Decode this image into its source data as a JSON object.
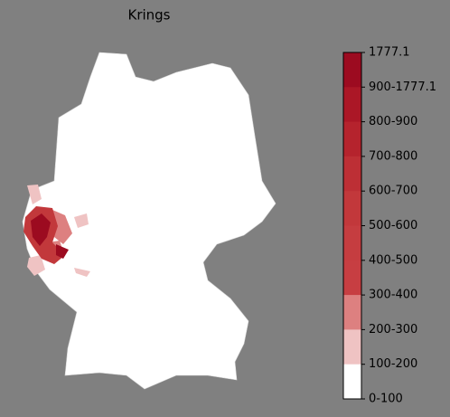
{
  "title": "Krings",
  "legend": {
    "labels": [
      "1777.1",
      "900-1777.1",
      "800-900",
      "700-800",
      "600-700",
      "500-600",
      "400-500",
      "300-400",
      "200-300",
      "100-200",
      "0-100"
    ],
    "colors": [
      "#9c0b20",
      "#ab1726",
      "#b5232d",
      "#bd2f35",
      "#c2383b",
      "#c53d40",
      "#c73e42",
      "#dd8080",
      "#efc3c3",
      "#ffffff"
    ]
  }
}
